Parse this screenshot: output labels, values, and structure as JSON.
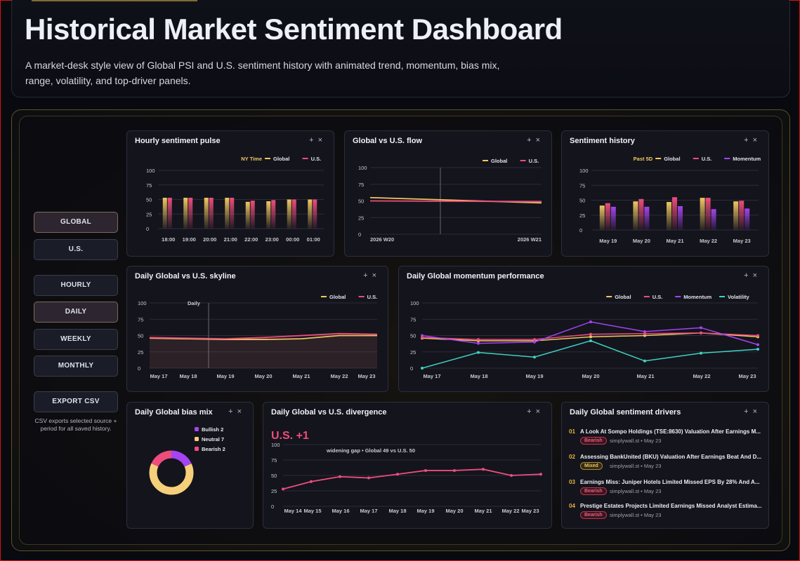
{
  "header": {
    "title": "Historical Market Sentiment Dashboard",
    "subtitle": "A market-desk style view of Global PSI and U.S. sentiment history with animated trend, momentum, bias mix, range, volatility, and top-driver panels."
  },
  "sidebar": {
    "source_buttons": [
      {
        "label": "GLOBAL",
        "active": true
      },
      {
        "label": "U.S.",
        "active": false
      }
    ],
    "period_buttons": [
      {
        "label": "HOURLY",
        "active": false
      },
      {
        "label": "DAILY",
        "active": true
      },
      {
        "label": "WEEKLY",
        "active": false
      },
      {
        "label": "MONTHLY",
        "active": false
      }
    ],
    "export_label": "EXPORT CSV",
    "export_note": "CSV exports selected source + period for all saved history."
  },
  "controls": {
    "add": "+",
    "close": "×"
  },
  "colors": {
    "global": "#f1c761",
    "us": "#ee4d7c",
    "momentum": "#a544f0",
    "volatility": "#3ed3c1",
    "bullish": "#a544f0",
    "neutral": "#f6cf7a",
    "bearish": "#ee4d7c"
  },
  "panels": {
    "hourly": {
      "title": "Hourly sentiment pulse",
      "legend_tag": "NY Time",
      "legend": [
        "Global",
        "U.S."
      ]
    },
    "flow": {
      "title": "Global vs U.S. flow",
      "legend": [
        "Global",
        "U.S."
      ]
    },
    "history": {
      "title": "Sentiment history",
      "legend_tag": "Past 5D",
      "legend": [
        "Global",
        "U.S.",
        "Momentum"
      ]
    },
    "skyline": {
      "title": "Daily Global vs U.S. skyline",
      "legend": [
        "Global",
        "U.S."
      ],
      "marker": "Daily"
    },
    "momentum": {
      "title": "Daily Global momentum performance",
      "legend": [
        "Global",
        "U.S.",
        "Momentum",
        "Volatility"
      ]
    },
    "bias": {
      "title": "Daily Global bias mix",
      "legend": [
        {
          "label": "Bullish 2",
          "value": 2
        },
        {
          "label": "Neutral 7",
          "value": 7
        },
        {
          "label": "Bearish 2",
          "value": 2
        }
      ]
    },
    "divergence": {
      "title": "Daily Global vs U.S. divergence",
      "headline": "U.S. +1",
      "note": "widening gap • Global 49 vs U.S. 50"
    },
    "drivers": {
      "title": "Daily Global sentiment drivers",
      "items": [
        {
          "num": "01",
          "headline": "A Look At Sompo Holdings (TSE:8630) Valuation After Earnings M...",
          "tag": "Bearish",
          "meta": "simplywall.st • May 23"
        },
        {
          "num": "02",
          "headline": "Assessing BankUnited (BKU) Valuation After Earnings Beat And D...",
          "tag": "Mixed",
          "meta": "simplywall.st • May 23"
        },
        {
          "num": "03",
          "headline": "Earnings Miss: Juniper Hotels Limited Missed EPS By 28% And A...",
          "tag": "Bearish",
          "meta": "simplywall.st • May 23"
        },
        {
          "num": "04",
          "headline": "Prestige Estates Projects Limited Earnings Missed Analyst Estima...",
          "tag": "Bearish",
          "meta": "simplywall.st • May 23"
        }
      ]
    }
  },
  "chart_data": [
    {
      "id": "hourly",
      "type": "bar",
      "categories": [
        "18:00",
        "19:00",
        "20:00",
        "21:00",
        "22:00",
        "23:00",
        "00:00",
        "01:00"
      ],
      "ylim": [
        0,
        100
      ],
      "yticks": [
        0,
        25,
        50,
        75,
        100
      ],
      "series": [
        {
          "name": "Global",
          "values": [
            53,
            53,
            53,
            53,
            46,
            47,
            50,
            50
          ]
        },
        {
          "name": "U.S.",
          "values": [
            53,
            53,
            53,
            53,
            48,
            49,
            50,
            50
          ]
        }
      ]
    },
    {
      "id": "flow",
      "type": "line",
      "categories": [
        "2026 W20",
        "2026 W21"
      ],
      "ylim": [
        0,
        100
      ],
      "yticks": [
        0,
        25,
        50,
        75,
        100
      ],
      "series": [
        {
          "name": "Global",
          "values": [
            55,
            47
          ]
        },
        {
          "name": "U.S.",
          "values": [
            50,
            49
          ]
        }
      ]
    },
    {
      "id": "history",
      "type": "bar",
      "categories": [
        "May 19",
        "May 20",
        "May 21",
        "May 22",
        "May 23"
      ],
      "ylim": [
        0,
        100
      ],
      "yticks": [
        0,
        25,
        50,
        75,
        100
      ],
      "series": [
        {
          "name": "Global",
          "values": [
            41,
            48,
            47,
            54,
            48
          ]
        },
        {
          "name": "U.S.",
          "values": [
            45,
            52,
            55,
            54,
            49
          ]
        },
        {
          "name": "Momentum",
          "values": [
            39,
            39,
            40,
            35,
            36
          ]
        }
      ]
    },
    {
      "id": "skyline",
      "type": "area",
      "categories": [
        "May 17",
        "May 18",
        "May 19",
        "May 20",
        "May 21",
        "May 22",
        "May 23"
      ],
      "ylim": [
        0,
        100
      ],
      "yticks": [
        0,
        25,
        50,
        75,
        100
      ],
      "series": [
        {
          "name": "Global",
          "values": [
            46,
            45,
            44,
            44,
            45,
            50,
            50
          ]
        },
        {
          "name": "U.S.",
          "values": [
            47,
            46,
            45,
            47,
            50,
            53,
            52
          ]
        }
      ]
    },
    {
      "id": "momentum",
      "type": "line",
      "categories": [
        "May 17",
        "May 18",
        "May 19",
        "May 20",
        "May 21",
        "May 22",
        "May 23"
      ],
      "ylim": [
        0,
        100
      ],
      "yticks": [
        0,
        25,
        50,
        75,
        100
      ],
      "series": [
        {
          "name": "Global",
          "values": [
            46,
            42,
            42,
            48,
            50,
            54,
            48
          ]
        },
        {
          "name": "U.S.",
          "values": [
            47,
            44,
            44,
            52,
            53,
            54,
            50
          ]
        },
        {
          "name": "Momentum",
          "values": [
            50,
            38,
            40,
            71,
            56,
            62,
            36
          ]
        },
        {
          "name": "Volatility",
          "values": [
            0,
            24,
            17,
            42,
            11,
            23,
            29
          ]
        }
      ]
    },
    {
      "id": "bias",
      "type": "pie",
      "categories": [
        "Bullish",
        "Neutral",
        "Bearish"
      ],
      "values": [
        2,
        7,
        2
      ]
    },
    {
      "id": "divergence",
      "type": "line",
      "categories": [
        "May 14",
        "May 15",
        "May 16",
        "May 17",
        "May 18",
        "May 19",
        "May 20",
        "May 21",
        "May 22",
        "May 23"
      ],
      "ylim": [
        0,
        100
      ],
      "yticks": [
        0,
        25,
        50,
        75,
        100
      ],
      "series": [
        {
          "name": "U.S.",
          "values": [
            28,
            40,
            48,
            46,
            52,
            58,
            58,
            60,
            50,
            52
          ]
        }
      ]
    }
  ]
}
